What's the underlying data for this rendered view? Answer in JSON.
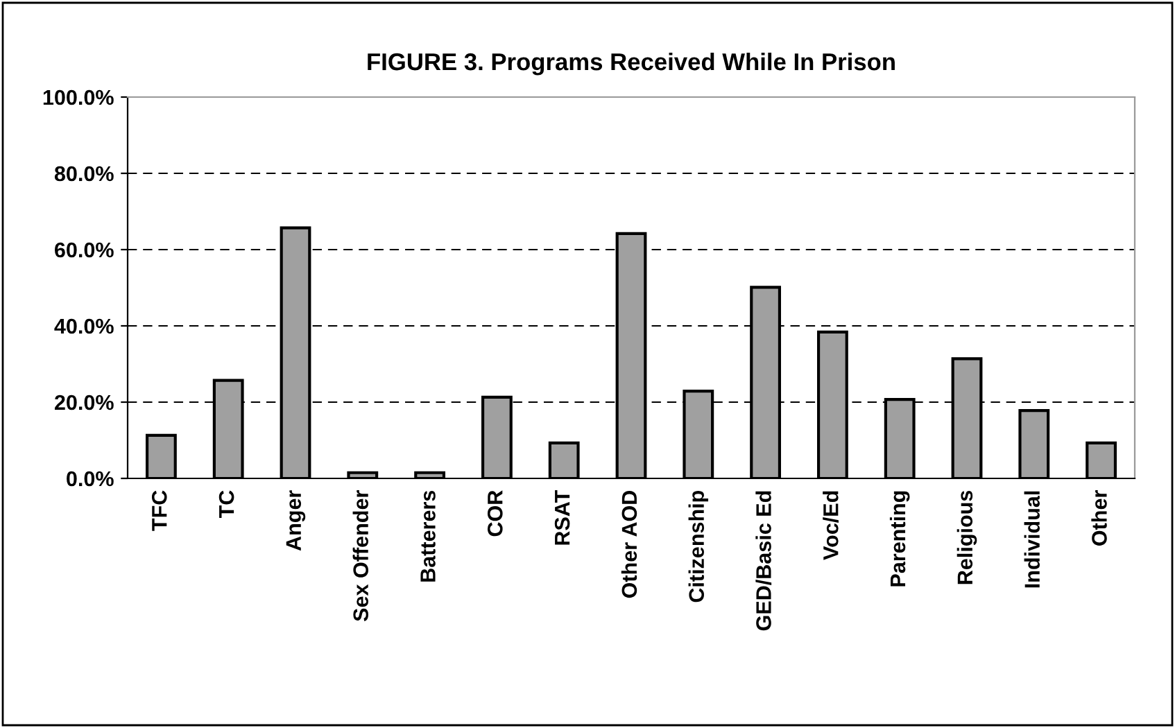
{
  "chart_data": {
    "type": "bar",
    "title": "FIGURE 3. Programs Received While In Prison",
    "categories": [
      "TFC",
      "TC",
      "Anger",
      "Sex Offender",
      "Batterers",
      "COR",
      "RSAT",
      "Other AOD",
      "Citizenship",
      "GED/Basic Ed",
      "Voc/Ed",
      "Parenting",
      "Religious",
      "Individual",
      "Other"
    ],
    "values": [
      11.3,
      25.7,
      65.7,
      1.5,
      1.5,
      21.3,
      9.3,
      64.2,
      22.9,
      50.1,
      38.4,
      20.7,
      31.4,
      17.8,
      9.3
    ],
    "color": "#a0a0a0",
    "ylim": [
      0,
      100
    ],
    "yticks": [
      {
        "value": 0,
        "label": "0.0%"
      },
      {
        "value": 20,
        "label": "20.0%"
      },
      {
        "value": 40,
        "label": "40.0%"
      },
      {
        "value": 60,
        "label": "60.0%"
      },
      {
        "value": 80,
        "label": "80.0%"
      },
      {
        "value": 100,
        "label": "100.0%"
      }
    ],
    "grid": "y",
    "line_style": "dashed"
  }
}
